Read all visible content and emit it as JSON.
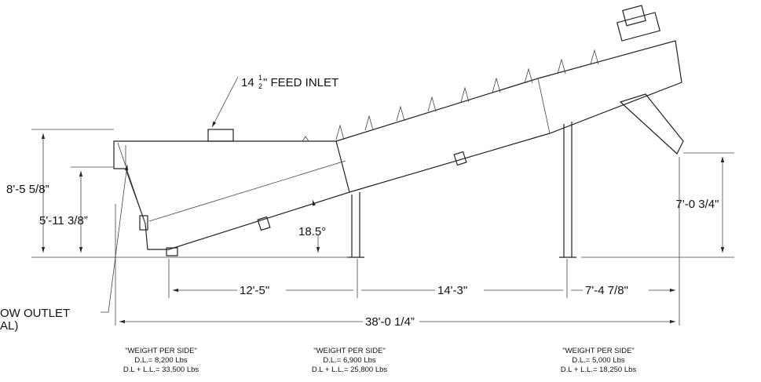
{
  "feed_inlet": {
    "whole": "14",
    "num": "1",
    "den": "2",
    "label": "\" FEED INLET"
  },
  "outlet_label": {
    "line1": "OW OUTLET",
    "line2": "AL)"
  },
  "dimensions": {
    "height_left": "8'-5 5/8”",
    "height_inlet": "5'-11 3/8”",
    "angle": "18.5°",
    "span_1": "12'-5\"",
    "span_2": "14'-3\"",
    "span_3": "7'-4 7/8\"",
    "overall": "38'-0 1/4”",
    "height_right": "7'-0 3/4\""
  },
  "weights": [
    {
      "title": "\"WEIGHT PER SIDE\"",
      "dl": "D.L.=  8,200 Lbs",
      "dll": "D.L + L.L.=  33,500 Lbs"
    },
    {
      "title": "\"WEIGHT PER SIDE\"",
      "dl": "D.L.=  6,900 Lbs",
      "dll": "D.L + L.L.=  25,800 Lbs"
    },
    {
      "title": "\"WEIGHT PER SIDE\"",
      "dl": "D.L.=  5,000 Lbs",
      "dll": "D.L + L.L.=  18,250 Lbs"
    }
  ]
}
